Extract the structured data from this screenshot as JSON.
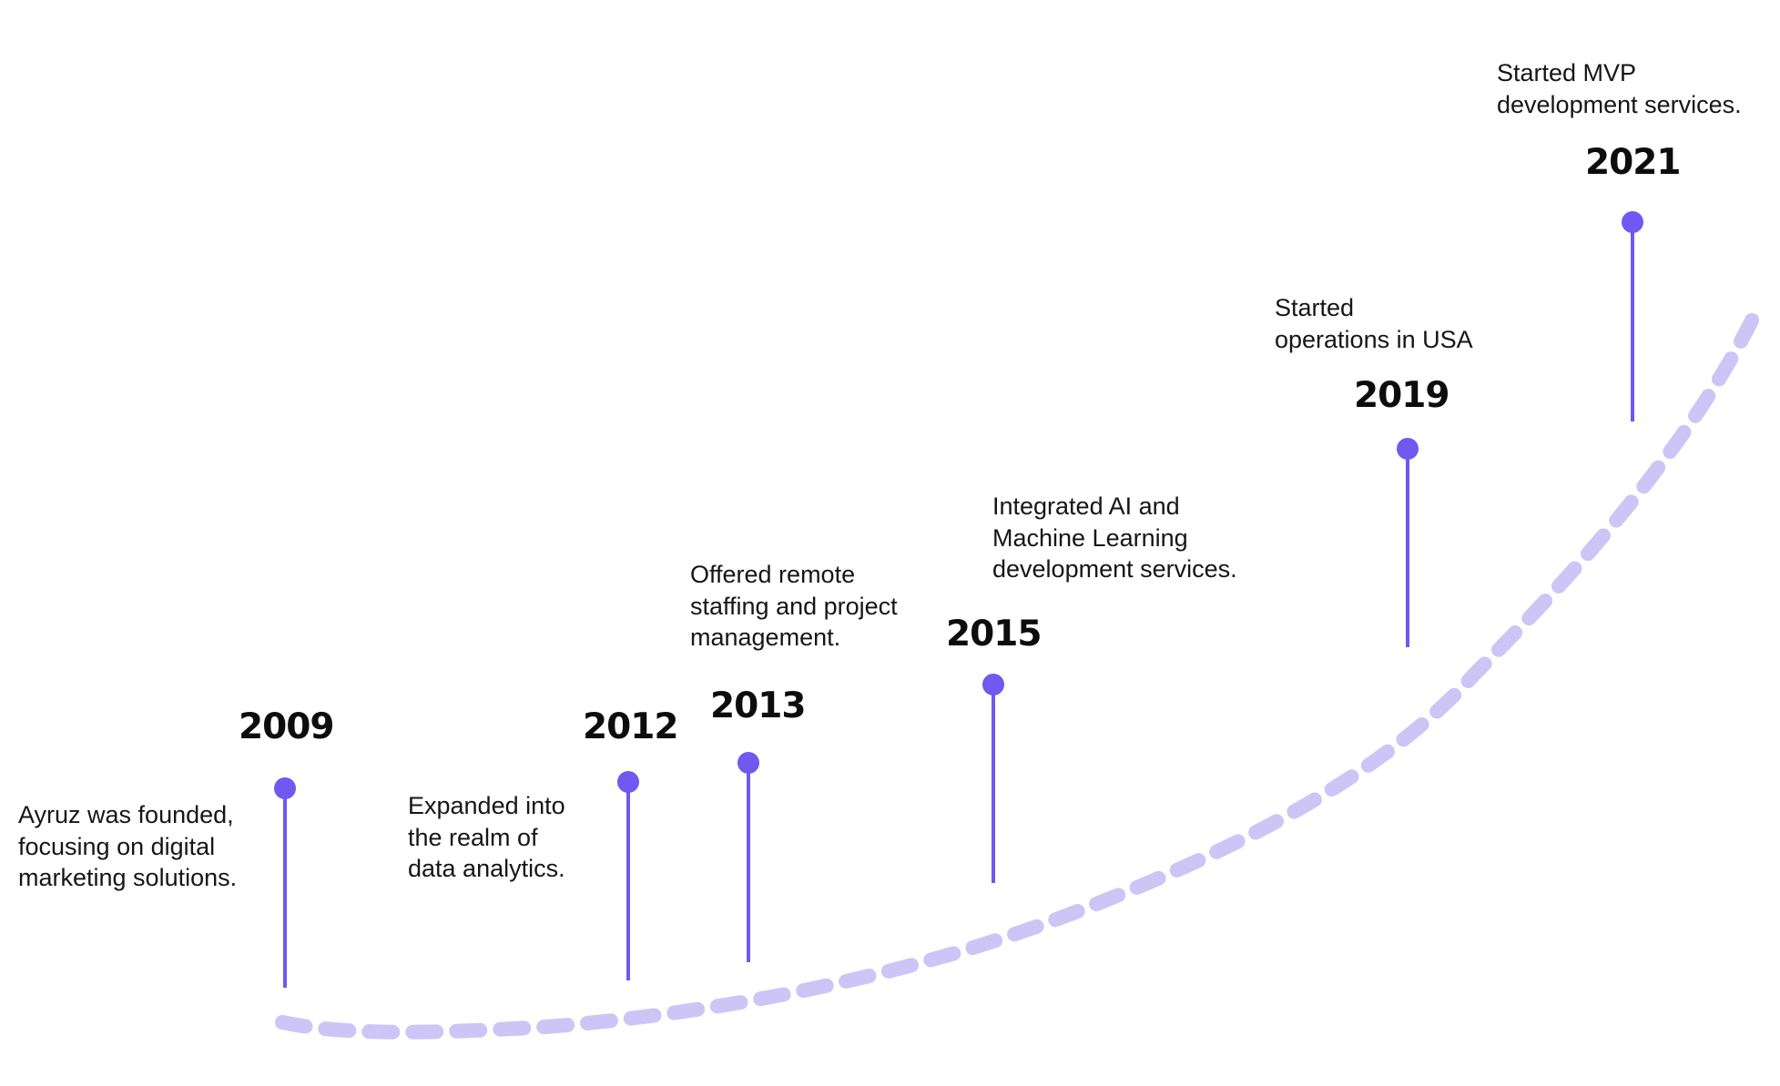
{
  "colors": {
    "accent": "#7058f0",
    "curve": "#cdc5f6",
    "text": "#161616"
  },
  "milestones": [
    {
      "year": "2009",
      "lines": [
        "Ayruz was founded,",
        "focusing on digital",
        "marketing solutions."
      ]
    },
    {
      "year": "2012",
      "lines": [
        "Expanded into",
        "the realm of",
        "data analytics."
      ]
    },
    {
      "year": "2013",
      "lines": [
        "Offered remote",
        "staffing and project",
        "management."
      ]
    },
    {
      "year": "2015",
      "lines": [
        "Integrated AI and",
        "Machine Learning",
        "development services."
      ]
    },
    {
      "year": "2019",
      "lines": [
        "Started",
        "operations in USA"
      ]
    },
    {
      "year": "2021",
      "lines": [
        "Started MVP",
        "development services."
      ]
    }
  ]
}
